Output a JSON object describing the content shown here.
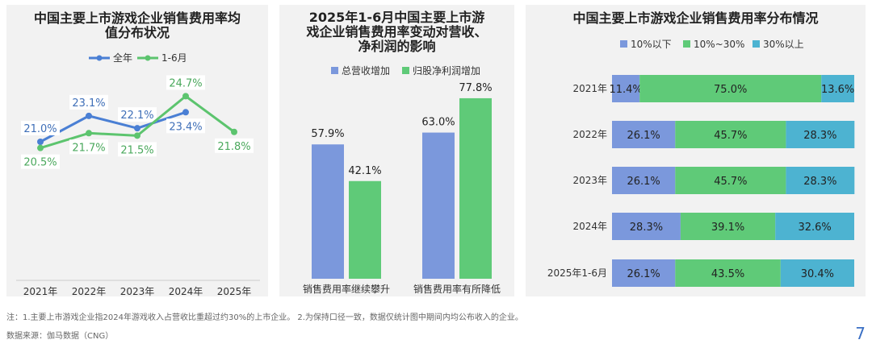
{
  "colors": {
    "blue": "#4a7fd4",
    "green": "#5cc46e",
    "bar_blue": "#7b98dc",
    "bar_green": "#5fca78",
    "bar_cyan": "#4db3d1"
  },
  "chart_data": [
    {
      "type": "line",
      "title": "中国主要上市游戏企业销售费用率均值分布状况",
      "categories": [
        "2021年",
        "2022年",
        "2023年",
        "2024年",
        "2025年"
      ],
      "legend": "top",
      "series": [
        {
          "name": "全年",
          "values": [
            21.0,
            23.1,
            22.1,
            23.4,
            null
          ],
          "labels": [
            "21.0%",
            "23.1%",
            "22.1%",
            "23.4%",
            ""
          ]
        },
        {
          "name": "1-6月",
          "values": [
            20.5,
            21.7,
            21.5,
            24.7,
            21.8
          ],
          "labels": [
            "20.5%",
            "21.7%",
            "21.5%",
            "24.7%",
            "21.8%"
          ]
        }
      ]
    },
    {
      "type": "bar",
      "title": "2025年1-6月中国主要上市游戏企业销售费用率变动对营收、净利润的影响",
      "categories": [
        "销售费用率继续攀升",
        "销售费用率有所降低"
      ],
      "legend": "top",
      "series": [
        {
          "name": "总营收增加",
          "values": [
            57.9,
            63.0
          ],
          "labels": [
            "57.9%",
            "63.0%"
          ]
        },
        {
          "name": "归股净利润增加",
          "values": [
            42.1,
            77.8
          ],
          "labels": [
            "42.1%",
            "77.8%"
          ]
        }
      ]
    },
    {
      "type": "bar",
      "orientation": "horizontal-stacked-100",
      "title": "中国主要上市游戏企业销售费用率分布情况",
      "categories": [
        "2021年",
        "2022年",
        "2023年",
        "2024年",
        "2025年1-6月"
      ],
      "legend": "top",
      "series": [
        {
          "name": "10%以下",
          "values": [
            11.4,
            26.1,
            26.1,
            28.3,
            26.1
          ]
        },
        {
          "name": "10%~30%",
          "values": [
            75.0,
            45.7,
            45.7,
            39.1,
            43.5
          ]
        },
        {
          "name": "30%以上",
          "values": [
            13.6,
            28.3,
            28.3,
            32.6,
            30.4
          ]
        }
      ]
    }
  ],
  "footer": {
    "note": "注：1.主要上市游戏企业指2024年游戏收入占营收比重超过约30%的上市企业。  2.为保持口径一致，数据仅统计图中期间内均公布收入的企业。",
    "source": "数据来源：伽马数据（CNG）",
    "page_number": "7"
  }
}
